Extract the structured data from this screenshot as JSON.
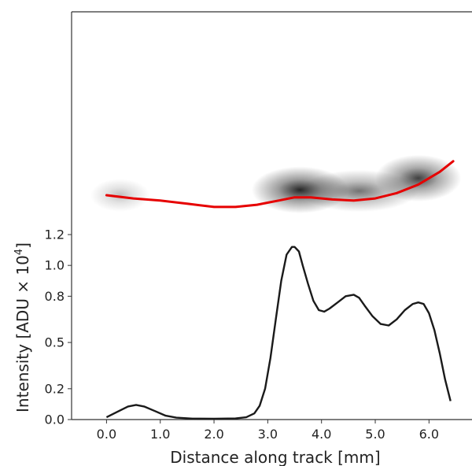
{
  "chart_data": {
    "type": "line",
    "xlabel": "Distance along track [mm]",
    "ylabel": {
      "text": "Intensity [ADU × 10",
      "superscript": "4",
      "suffix": "]"
    },
    "xlim": [
      -0.65,
      6.8
    ],
    "ylim": [
      0,
      1.2
    ],
    "x_ticks": [
      0.0,
      1.0,
      2.0,
      3.0,
      4.0,
      5.0,
      6.0
    ],
    "x_tick_labels": [
      "0.0",
      "1.0",
      "2.0",
      "3.0",
      "4.0",
      "5.0",
      "6.0"
    ],
    "y_ticks": [
      0.0,
      0.2,
      0.5,
      0.8,
      1.0,
      1.2
    ],
    "y_tick_labels": [
      "0.0",
      "0.2",
      "0.5",
      "0.8",
      "1.0",
      "1.2"
    ],
    "grid": false,
    "colors": {
      "profile": "#1a1a1a",
      "track": "#e60000",
      "axis": "#333333"
    },
    "series": [
      {
        "x": [
          0.0,
          0.2,
          0.4,
          0.55,
          0.7,
          0.9,
          1.1,
          1.3,
          1.6,
          2.0,
          2.4,
          2.6,
          2.75,
          2.85,
          2.95,
          3.05,
          3.15,
          3.25,
          3.35,
          3.45,
          3.5,
          3.58,
          3.65,
          3.75,
          3.85,
          3.95,
          4.05,
          4.15,
          4.3,
          4.45,
          4.6,
          4.7,
          4.8,
          4.95,
          5.1,
          5.25,
          5.4,
          5.55,
          5.7,
          5.8,
          5.9,
          6.0,
          6.1,
          6.2,
          6.3,
          6.4
        ],
        "y": [
          0.015,
          0.05,
          0.085,
          0.095,
          0.085,
          0.055,
          0.025,
          0.012,
          0.006,
          0.005,
          0.007,
          0.015,
          0.04,
          0.09,
          0.2,
          0.4,
          0.65,
          0.9,
          1.07,
          1.12,
          1.12,
          1.09,
          1.0,
          0.88,
          0.77,
          0.71,
          0.7,
          0.72,
          0.76,
          0.8,
          0.81,
          0.79,
          0.74,
          0.67,
          0.62,
          0.61,
          0.65,
          0.71,
          0.75,
          0.76,
          0.75,
          0.69,
          0.58,
          0.43,
          0.26,
          0.12
        ]
      }
    ],
    "track_image": {
      "blobs": [
        {
          "x": 0.25,
          "y": 0.0,
          "rx": 0.55,
          "ry": 0.35,
          "intensity": 0.25
        },
        {
          "x": 3.6,
          "y": 0.25,
          "rx": 0.9,
          "ry": 0.5,
          "intensity": 0.85
        },
        {
          "x": 4.7,
          "y": 0.2,
          "rx": 1.1,
          "ry": 0.45,
          "intensity": 0.55
        },
        {
          "x": 5.8,
          "y": 0.8,
          "rx": 0.8,
          "ry": 0.5,
          "intensity": 0.75
        }
      ],
      "centerline": {
        "x": [
          0.0,
          0.5,
          1.0,
          1.5,
          2.0,
          2.4,
          2.8,
          3.2,
          3.5,
          3.8,
          4.2,
          4.6,
          5.0,
          5.4,
          5.8,
          6.2,
          6.45
        ],
        "y": [
          0.0,
          -0.15,
          -0.25,
          -0.4,
          -0.55,
          -0.55,
          -0.45,
          -0.25,
          -0.1,
          -0.1,
          -0.2,
          -0.25,
          -0.15,
          0.1,
          0.5,
          1.1,
          1.6
        ]
      }
    }
  }
}
